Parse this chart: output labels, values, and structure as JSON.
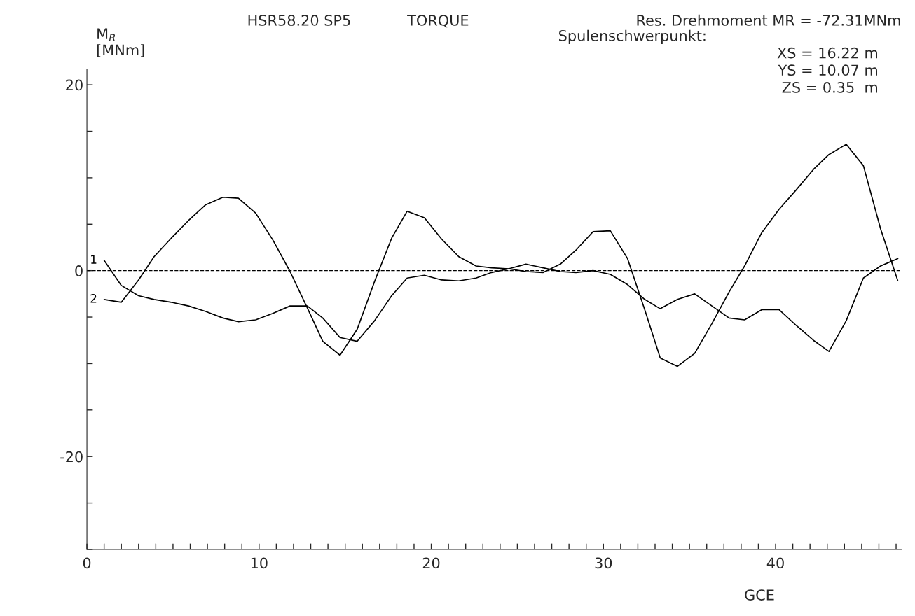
{
  "chart_data": {
    "type": "line",
    "title": "HSR58.20 SP5",
    "subtitle": "TORQUE",
    "xlabel": "GCE",
    "ylabel": "M$_{R}$\n[MNm]",
    "annotations": [
      "Res. Drehmoment MR = -72.31MNm",
      "Spulenschwerpunkt:",
      "XS = 16.22 m",
      "YS = 10.07 m",
      "ZS = 0.35  m"
    ],
    "x": [
      1.0,
      2.0,
      3.0,
      3.9,
      4.9,
      5.9,
      6.9,
      7.9,
      8.8,
      9.8,
      10.8,
      11.8,
      12.8,
      13.7,
      14.7,
      15.7,
      16.7,
      17.7,
      18.6,
      19.6,
      20.6,
      21.6,
      22.6,
      23.5,
      24.5,
      25.5,
      26.5,
      27.5,
      28.4,
      29.4,
      30.4,
      31.4,
      32.4,
      33.3,
      34.3,
      35.3,
      36.3,
      37.3,
      38.2,
      39.2,
      40.2,
      41.2,
      42.2,
      43.1,
      44.1,
      45.1,
      46.1,
      47.1
    ],
    "series": [
      {
        "name": "1",
        "color": "#000000",
        "values": [
          1.1,
          -1.6,
          -2.7,
          -3.1,
          -3.4,
          -3.8,
          -4.4,
          -5.1,
          -5.5,
          -5.3,
          -4.6,
          -3.8,
          -3.8,
          -5.1,
          -7.2,
          -7.6,
          -5.4,
          -2.7,
          -0.8,
          -0.5,
          -1.0,
          -1.1,
          -0.8,
          -0.2,
          0.2,
          0.7,
          0.3,
          -0.1,
          -0.2,
          0.0,
          -0.4,
          -1.5,
          -3.1,
          -4.1,
          -3.1,
          -2.5,
          -3.8,
          -5.1,
          -5.3,
          -4.2,
          -4.2,
          -5.9,
          -7.5,
          -8.7,
          -5.4,
          -0.8,
          0.5,
          1.3
        ]
      },
      {
        "name": "2",
        "color": "#000000",
        "values": [
          -3.1,
          -3.4,
          -1.0,
          1.5,
          3.5,
          5.4,
          7.1,
          7.9,
          7.8,
          6.2,
          3.3,
          -0.1,
          -4.0,
          -7.6,
          -9.1,
          -6.3,
          -1.2,
          3.5,
          6.4,
          5.7,
          3.4,
          1.5,
          0.5,
          0.3,
          0.2,
          -0.1,
          -0.2,
          0.7,
          2.2,
          4.2,
          4.3,
          1.3,
          -4.2,
          -9.4,
          -10.3,
          -8.9,
          -5.7,
          -2.3,
          0.5,
          4.1,
          6.6,
          8.7,
          10.9,
          12.5,
          13.6,
          11.3,
          4.5,
          -1.1
        ]
      }
    ],
    "xlim": [
      0,
      47.3
    ],
    "ylim": [
      -30,
      21.7
    ],
    "xticks": [
      0,
      {
        "value": 1,
        "label": null
      },
      {
        "value": 2,
        "label": null
      },
      {
        "value": 3,
        "label": null
      },
      {
        "value": 4,
        "label": null
      },
      {
        "value": 5,
        "label": null
      },
      {
        "value": 6,
        "label": null
      },
      {
        "value": 7,
        "label": null
      },
      {
        "value": 8,
        "label": null
      },
      {
        "value": 9,
        "label": null
      },
      10,
      {
        "value": 11,
        "label": null
      },
      {
        "value": 12,
        "label": null
      },
      {
        "value": 13,
        "label": null
      },
      {
        "value": 14,
        "label": null
      },
      {
        "value": 15,
        "label": null
      },
      {
        "value": 16,
        "label": null
      },
      {
        "value": 17,
        "label": null
      },
      {
        "value": 18,
        "label": null
      },
      {
        "value": 19,
        "label": null
      },
      20,
      {
        "value": 21,
        "label": null
      },
      {
        "value": 22,
        "label": null
      },
      {
        "value": 23,
        "label": null
      },
      {
        "value": 24,
        "label": null
      },
      {
        "value": 25,
        "label": null
      },
      {
        "value": 26,
        "label": null
      },
      {
        "value": 27,
        "label": null
      },
      {
        "value": 28,
        "label": null
      },
      {
        "value": 29,
        "label": null
      },
      30,
      {
        "value": 31,
        "label": null
      },
      {
        "value": 32,
        "label": null
      },
      {
        "value": 33,
        "label": null
      },
      {
        "value": 34,
        "label": null
      },
      {
        "value": 35,
        "label": null
      },
      {
        "value": 36,
        "label": null
      },
      {
        "value": 37,
        "label": null
      },
      {
        "value": 38,
        "label": null
      },
      {
        "value": 39,
        "label": null
      },
      40,
      {
        "value": 41,
        "label": null
      },
      {
        "value": 42,
        "label": null
      },
      {
        "value": 43,
        "label": null
      },
      {
        "value": 44,
        "label": null
      },
      {
        "value": 45,
        "label": null
      },
      {
        "value": 46,
        "label": null
      },
      {
        "value": 47,
        "label": null
      }
    ],
    "yticks": [
      {
        "value": -30,
        "label": null
      },
      {
        "value": -25,
        "label": null
      },
      -20,
      {
        "value": -15,
        "label": null
      },
      {
        "value": -10,
        "label": null
      },
      {
        "value": -5,
        "label": null
      },
      0,
      {
        "value": 5,
        "label": null
      },
      {
        "value": 10,
        "label": null
      },
      {
        "value": 15,
        "label": null
      },
      20
    ],
    "ref_lines": [
      {
        "axis": "y",
        "value": 0,
        "line_style": "dashed",
        "color": "#000000"
      }
    ],
    "grid": false,
    "legend": false,
    "marker": "none",
    "line_style": "solid"
  }
}
